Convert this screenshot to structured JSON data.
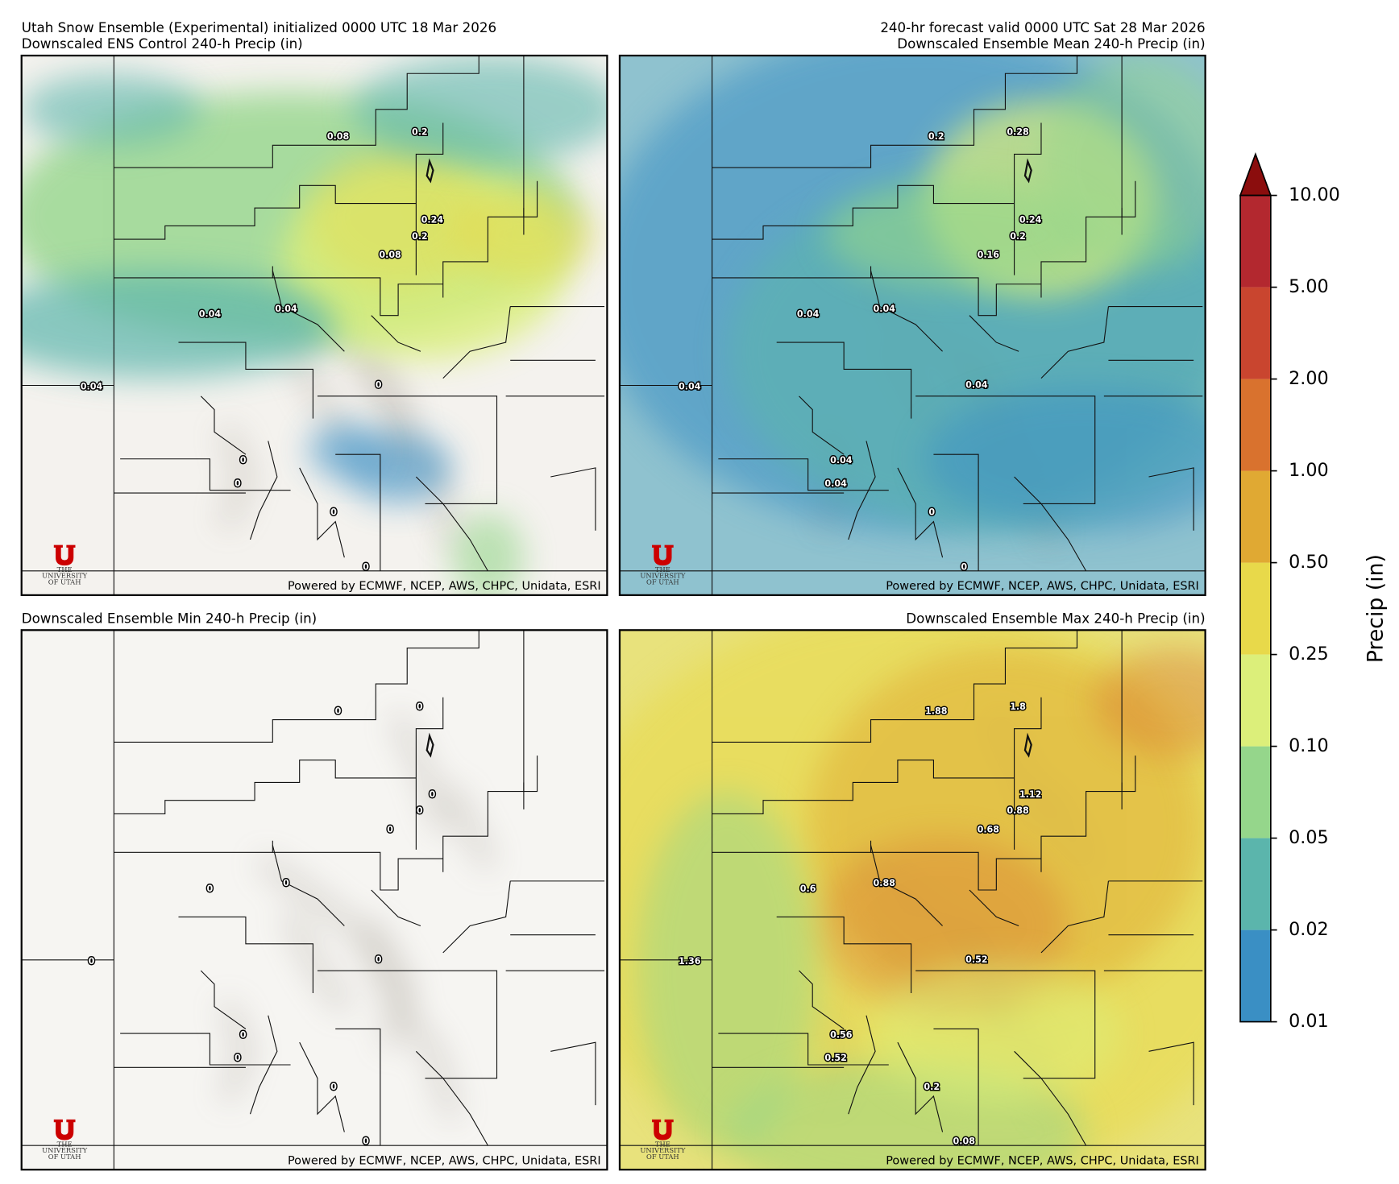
{
  "header": {
    "left_title": "Utah Snow Ensemble (Experimental) initialized 0000 UTC 18 Mar 2026",
    "right_title": "240-hr forecast valid 0000 UTC Sat 28 Mar 2026"
  },
  "panels": [
    {
      "title": "Downscaled ENS Control 240-h Precip (in)",
      "labels": [
        "0.08",
        "0.2",
        "0.24",
        "0.2",
        "0.08",
        "0.04",
        "0.04",
        "0.04",
        "0",
        "0",
        "0",
        "0",
        "0"
      ]
    },
    {
      "title": "Downscaled Ensemble Mean 240-h Precip (in)",
      "labels": [
        "0.2",
        "0.28",
        "0.24",
        "0.2",
        "0.16",
        "0.04",
        "0.04",
        "0.04",
        "0.04",
        "0.04",
        "0.04",
        "0",
        "0"
      ]
    },
    {
      "title": "Downscaled Ensemble Min 240-h Precip (in)",
      "labels": [
        "0",
        "0",
        "0",
        "0",
        "0",
        "0",
        "0",
        "0",
        "0",
        "0",
        "0",
        "0",
        "0"
      ]
    },
    {
      "title": "Downscaled Ensemble Max 240-h Precip (in)",
      "labels": [
        "1.88",
        "1.8",
        "1.12",
        "0.88",
        "0.68",
        "0.6",
        "0.88",
        "1.36",
        "0.52",
        "0.56",
        "0.52",
        "0.2",
        "0.08"
      ]
    }
  ],
  "credit": "Powered by ECMWF, NCEP, AWS, CHPC, Unidata, ESRI",
  "logo": {
    "lines": [
      "THE",
      "UNIVERSITY",
      "OF UTAH"
    ]
  },
  "colorbar": {
    "label": "Precip (in)",
    "ticks": [
      {
        "value": 0.01,
        "label": "0.01"
      },
      {
        "value": 0.02,
        "label": "0.02"
      },
      {
        "value": 0.05,
        "label": "0.05"
      },
      {
        "value": 0.1,
        "label": "0.10"
      },
      {
        "value": 0.25,
        "label": "0.25"
      },
      {
        "value": 0.5,
        "label": "0.50"
      },
      {
        "value": 1,
        "label": "1.00"
      },
      {
        "value": 2,
        "label": "2.00"
      },
      {
        "value": 5,
        "label": "5.00"
      },
      {
        "value": 10,
        "label": "10.00"
      }
    ],
    "colors": [
      "#3a8fc4",
      "#5bb5ac",
      "#95d68b",
      "#dcef7a",
      "#e8d94a",
      "#e0a933",
      "#d9722e",
      "#c9452f",
      "#b3282f"
    ],
    "extend_color": "#8b0d0d"
  }
}
